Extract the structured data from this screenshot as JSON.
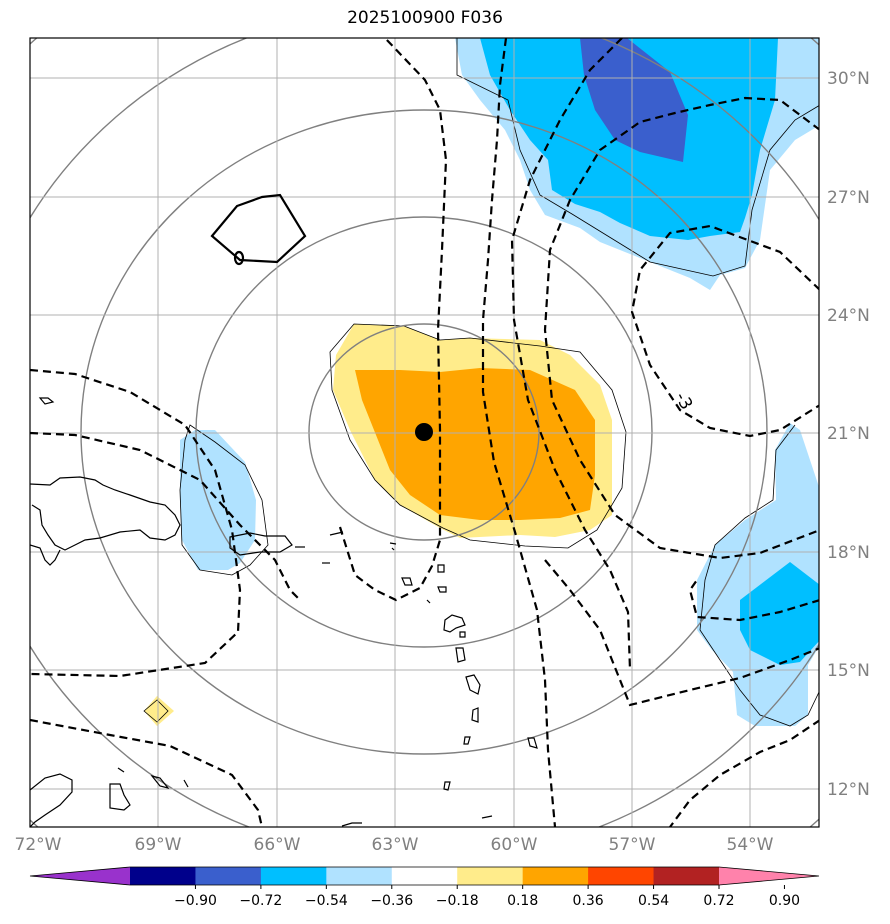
{
  "title": "2025100900 F036",
  "map": {
    "lon_labels": [
      "72°W",
      "69°W",
      "66°W",
      "63°W",
      "60°W",
      "57°W",
      "54°W"
    ],
    "lat_labels": [
      "30°N",
      "27°N",
      "24°N",
      "21°N",
      "18°N",
      "15°N",
      "12°N"
    ],
    "contour_label": "-3",
    "storm_center": {
      "lon": "62.3°W",
      "lat": "21.0°N"
    }
  },
  "colorbar": {
    "ticks": [
      "−0.90",
      "−0.72",
      "−0.54",
      "−0.36",
      "−0.18",
      "0.18",
      "0.36",
      "0.54",
      "0.72",
      "0.90"
    ],
    "colors": [
      "#9932cc",
      "#00008b",
      "#3a5fcd",
      "#00bfff",
      "#b0e2ff",
      "#ffffff",
      "#ffec8b",
      "#ffa500",
      "#ff4500",
      "#b22222",
      "#ff82ab"
    ]
  }
}
